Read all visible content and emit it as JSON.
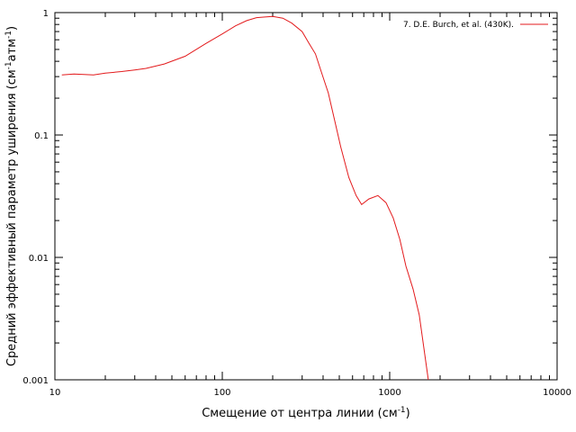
{
  "chart_data": {
    "type": "line",
    "xlabel": "Смещение от центра линии (см",
    "xlabel_sup": "-1",
    "xlabel_end": ")",
    "ylabel": "Средний эффективный параметр уширения (см",
    "ylabel_sup1": "-1",
    "ylabel_mid": "атм",
    "ylabel_sup2": "-1",
    "ylabel_end": ")",
    "x_scale": "log",
    "y_scale": "log",
    "xlim": [
      10,
      10000
    ],
    "ylim": [
      0.001,
      1
    ],
    "x_ticks": [
      10,
      100,
      1000,
      10000
    ],
    "x_tick_labels": [
      "10",
      "100",
      "1000",
      "10000"
    ],
    "y_ticks": [
      0.001,
      0.01,
      0.1,
      1
    ],
    "y_tick_labels": [
      "0.001",
      "0.01",
      "0.1",
      "1"
    ],
    "grid": false,
    "legend_position": "top-right",
    "series": [
      {
        "name": "7. D.E. Burch, et al. (430K).",
        "color": "#e31a1c",
        "x": [
          11,
          13,
          17,
          20,
          25,
          30,
          35,
          45,
          60,
          80,
          100,
          120,
          140,
          160,
          180,
          200,
          230,
          260,
          300,
          330,
          360,
          390,
          430,
          470,
          510,
          570,
          630,
          680,
          750,
          850,
          950,
          1050,
          1150,
          1250,
          1380,
          1500,
          1700
        ],
        "y": [
          0.31,
          0.315,
          0.31,
          0.32,
          0.33,
          0.34,
          0.35,
          0.38,
          0.44,
          0.56,
          0.67,
          0.78,
          0.86,
          0.91,
          0.92,
          0.93,
          0.9,
          0.82,
          0.7,
          0.56,
          0.46,
          0.33,
          0.22,
          0.13,
          0.08,
          0.045,
          0.032,
          0.027,
          0.03,
          0.032,
          0.028,
          0.021,
          0.014,
          0.0085,
          0.0055,
          0.0034,
          0.001
        ]
      }
    ]
  }
}
